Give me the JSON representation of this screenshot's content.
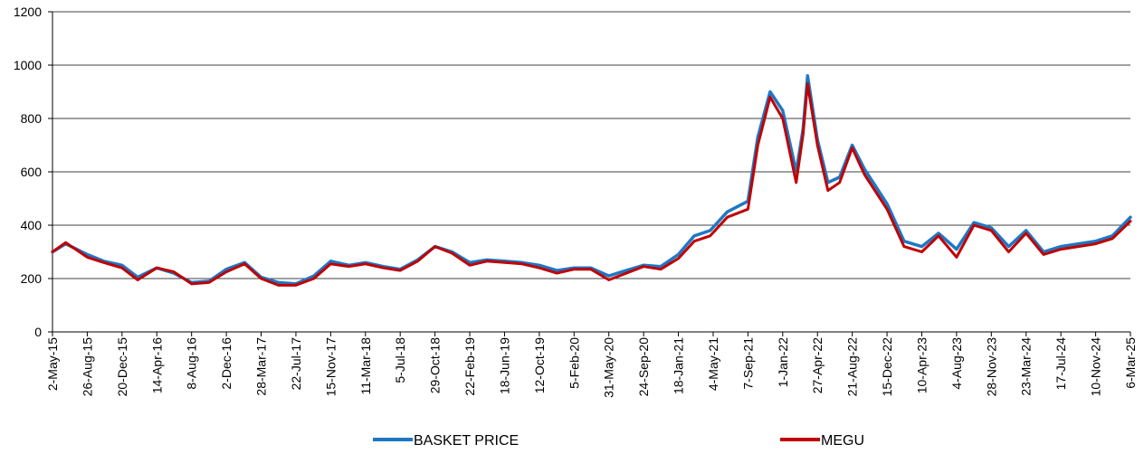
{
  "chart_data": {
    "type": "line",
    "title": "",
    "xlabel": "",
    "ylabel": "",
    "ylim": [
      0,
      1200
    ],
    "yticks": [
      0,
      200,
      400,
      600,
      800,
      1000,
      1200
    ],
    "grid": "horizontal",
    "legend_position": "bottom",
    "x_tick_labels": [
      "2-May-15",
      "26-Aug-15",
      "20-Dec-15",
      "14-Apr-16",
      "8-Aug-16",
      "2-Dec-16",
      "28-Mar-17",
      "22-Jul-17",
      "15-Nov-17",
      "11-Mar-18",
      "5-Jul-18",
      "29-Oct-18",
      "22-Feb-19",
      "18-Jun-19",
      "12-Oct-19",
      "5-Feb-20",
      "31-May-20",
      "24-Sep-20",
      "18-Jan-21",
      "4-May-21",
      "7-Sep-21",
      "1-Jan-22",
      "27-Apr-22",
      "21-Aug-22",
      "15-Dec-22",
      "10-Apr-23",
      "4-Aug-23",
      "28-Nov-23",
      "23-Mar-24",
      "17-Jul-24",
      "10-Nov-24",
      "6-Mar-25"
    ],
    "x": [
      "2015-05-02",
      "2015-06-15",
      "2015-08-26",
      "2015-10-20",
      "2015-12-20",
      "2016-02-10",
      "2016-04-14",
      "2016-06-10",
      "2016-08-08",
      "2016-10-05",
      "2016-12-02",
      "2017-02-01",
      "2017-03-28",
      "2017-05-25",
      "2017-07-22",
      "2017-09-20",
      "2017-11-15",
      "2018-01-15",
      "2018-03-11",
      "2018-05-10",
      "2018-07-05",
      "2018-09-01",
      "2018-10-29",
      "2018-12-25",
      "2019-02-22",
      "2019-04-20",
      "2019-06-18",
      "2019-08-15",
      "2019-10-12",
      "2019-12-10",
      "2020-02-05",
      "2020-04-01",
      "2020-05-31",
      "2020-07-28",
      "2020-09-24",
      "2020-11-20",
      "2021-01-18",
      "2021-03-12",
      "2021-05-04",
      "2021-06-30",
      "2021-09-07",
      "2021-10-10",
      "2021-11-20",
      "2022-01-01",
      "2022-02-15",
      "2022-03-10",
      "2022-03-25",
      "2022-04-27",
      "2022-06-01",
      "2022-07-10",
      "2022-08-21",
      "2022-10-01",
      "2022-12-15",
      "2023-02-10",
      "2023-04-10",
      "2023-06-05",
      "2023-08-04",
      "2023-10-01",
      "2023-11-28",
      "2024-01-25",
      "2024-03-23",
      "2024-05-20",
      "2024-07-17",
      "2024-09-13",
      "2024-11-10",
      "2025-01-05",
      "2025-03-06"
    ],
    "series": [
      {
        "name": "BASKET PRICE",
        "color": "#1f77c4",
        "values": [
          300,
          330,
          290,
          265,
          250,
          205,
          240,
          220,
          185,
          190,
          235,
          260,
          205,
          185,
          180,
          210,
          265,
          250,
          260,
          245,
          235,
          270,
          320,
          300,
          260,
          270,
          265,
          260,
          250,
          230,
          240,
          240,
          210,
          230,
          250,
          245,
          290,
          360,
          380,
          450,
          490,
          730,
          900,
          830,
          600,
          760,
          960,
          720,
          560,
          580,
          700,
          610,
          480,
          340,
          320,
          370,
          310,
          410,
          390,
          320,
          380,
          300,
          320,
          330,
          340,
          360,
          430
        ]
      },
      {
        "name": "MEGU",
        "color": "#c00000",
        "values": [
          300,
          335,
          280,
          260,
          240,
          195,
          240,
          225,
          180,
          185,
          225,
          255,
          200,
          175,
          175,
          200,
          255,
          245,
          255,
          240,
          230,
          265,
          320,
          295,
          250,
          265,
          260,
          255,
          240,
          220,
          235,
          235,
          195,
          220,
          245,
          235,
          275,
          340,
          360,
          430,
          460,
          700,
          880,
          800,
          560,
          740,
          930,
          700,
          530,
          560,
          690,
          590,
          460,
          320,
          300,
          360,
          280,
          400,
          380,
          300,
          370,
          290,
          310,
          320,
          330,
          350,
          415
        ]
      }
    ]
  }
}
